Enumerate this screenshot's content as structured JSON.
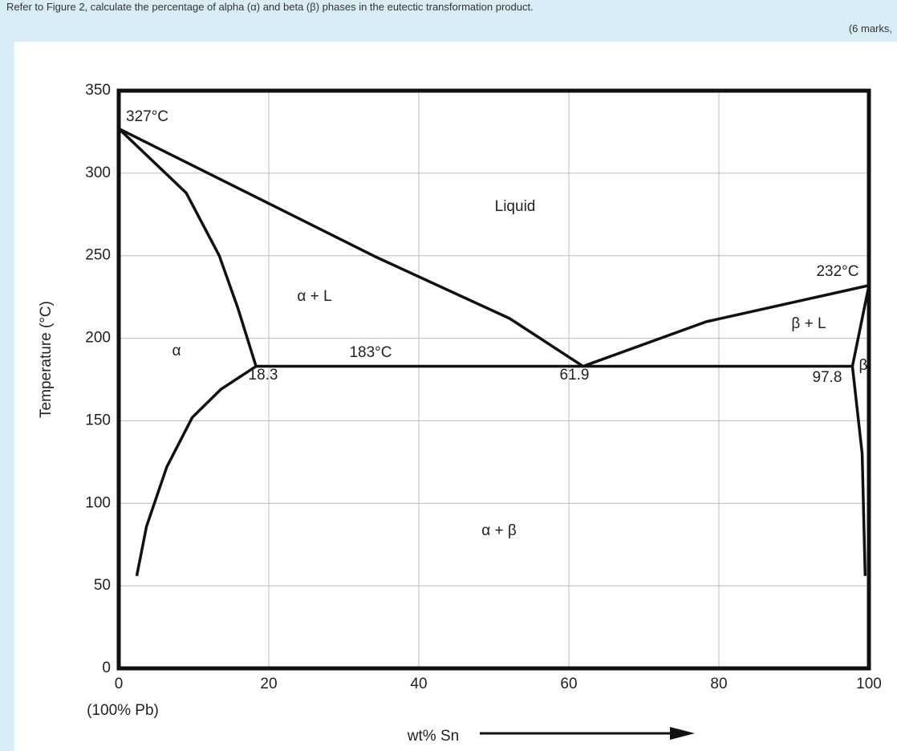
{
  "question": "Refer to Figure 2, calculate the percentage of alpha (α) and beta (β) phases in the eutectic transformation product.",
  "marks": "(6 marks,",
  "chart_data": {
    "type": "line",
    "x_label": "wt% Sn",
    "y_label": "Temperature (°C)",
    "xlim": [
      0,
      100
    ],
    "ylim": [
      0,
      350
    ],
    "xticks": [
      0,
      20,
      40,
      60,
      80,
      100
    ],
    "yticks": [
      0,
      50,
      100,
      150,
      200,
      250,
      300,
      350
    ],
    "grid": true,
    "annotations": [
      "327°C",
      "Liquid",
      "α + L",
      "α",
      "183°C",
      "18.3",
      "61.9",
      "232°C",
      "β + L",
      "97.8",
      "β",
      "α + β",
      "(100% Pb)"
    ],
    "series": [
      {
        "color": "#111111",
        "x": [
          0,
          34.4,
          52.1,
          61.9
        ],
        "values": [
          327,
          249,
          212,
          183
        ]
      },
      {
        "color": "#111111",
        "x": [
          0,
          9,
          13.4,
          15.9,
          18.3
        ],
        "values": [
          327,
          288,
          250,
          218,
          183
        ]
      },
      {
        "color": "#111111",
        "x": [
          18.3,
          13.6,
          9.8,
          6.4,
          3.7,
          2.4
        ],
        "values": [
          183,
          169,
          152,
          122,
          86,
          56
        ]
      },
      {
        "color": "#111111",
        "x": [
          18.3,
          97.8
        ],
        "values": [
          183,
          183
        ]
      },
      {
        "color": "#111111",
        "x": [
          61.9,
          78.3,
          92.1,
          100
        ],
        "values": [
          183,
          210,
          224,
          232
        ]
      },
      {
        "color": "#111111",
        "x": [
          100,
          97.8
        ],
        "values": [
          232,
          183
        ]
      },
      {
        "color": "#111111",
        "x": [
          97.8,
          99.1,
          99.5
        ],
        "values": [
          183,
          130,
          56
        ]
      }
    ]
  }
}
